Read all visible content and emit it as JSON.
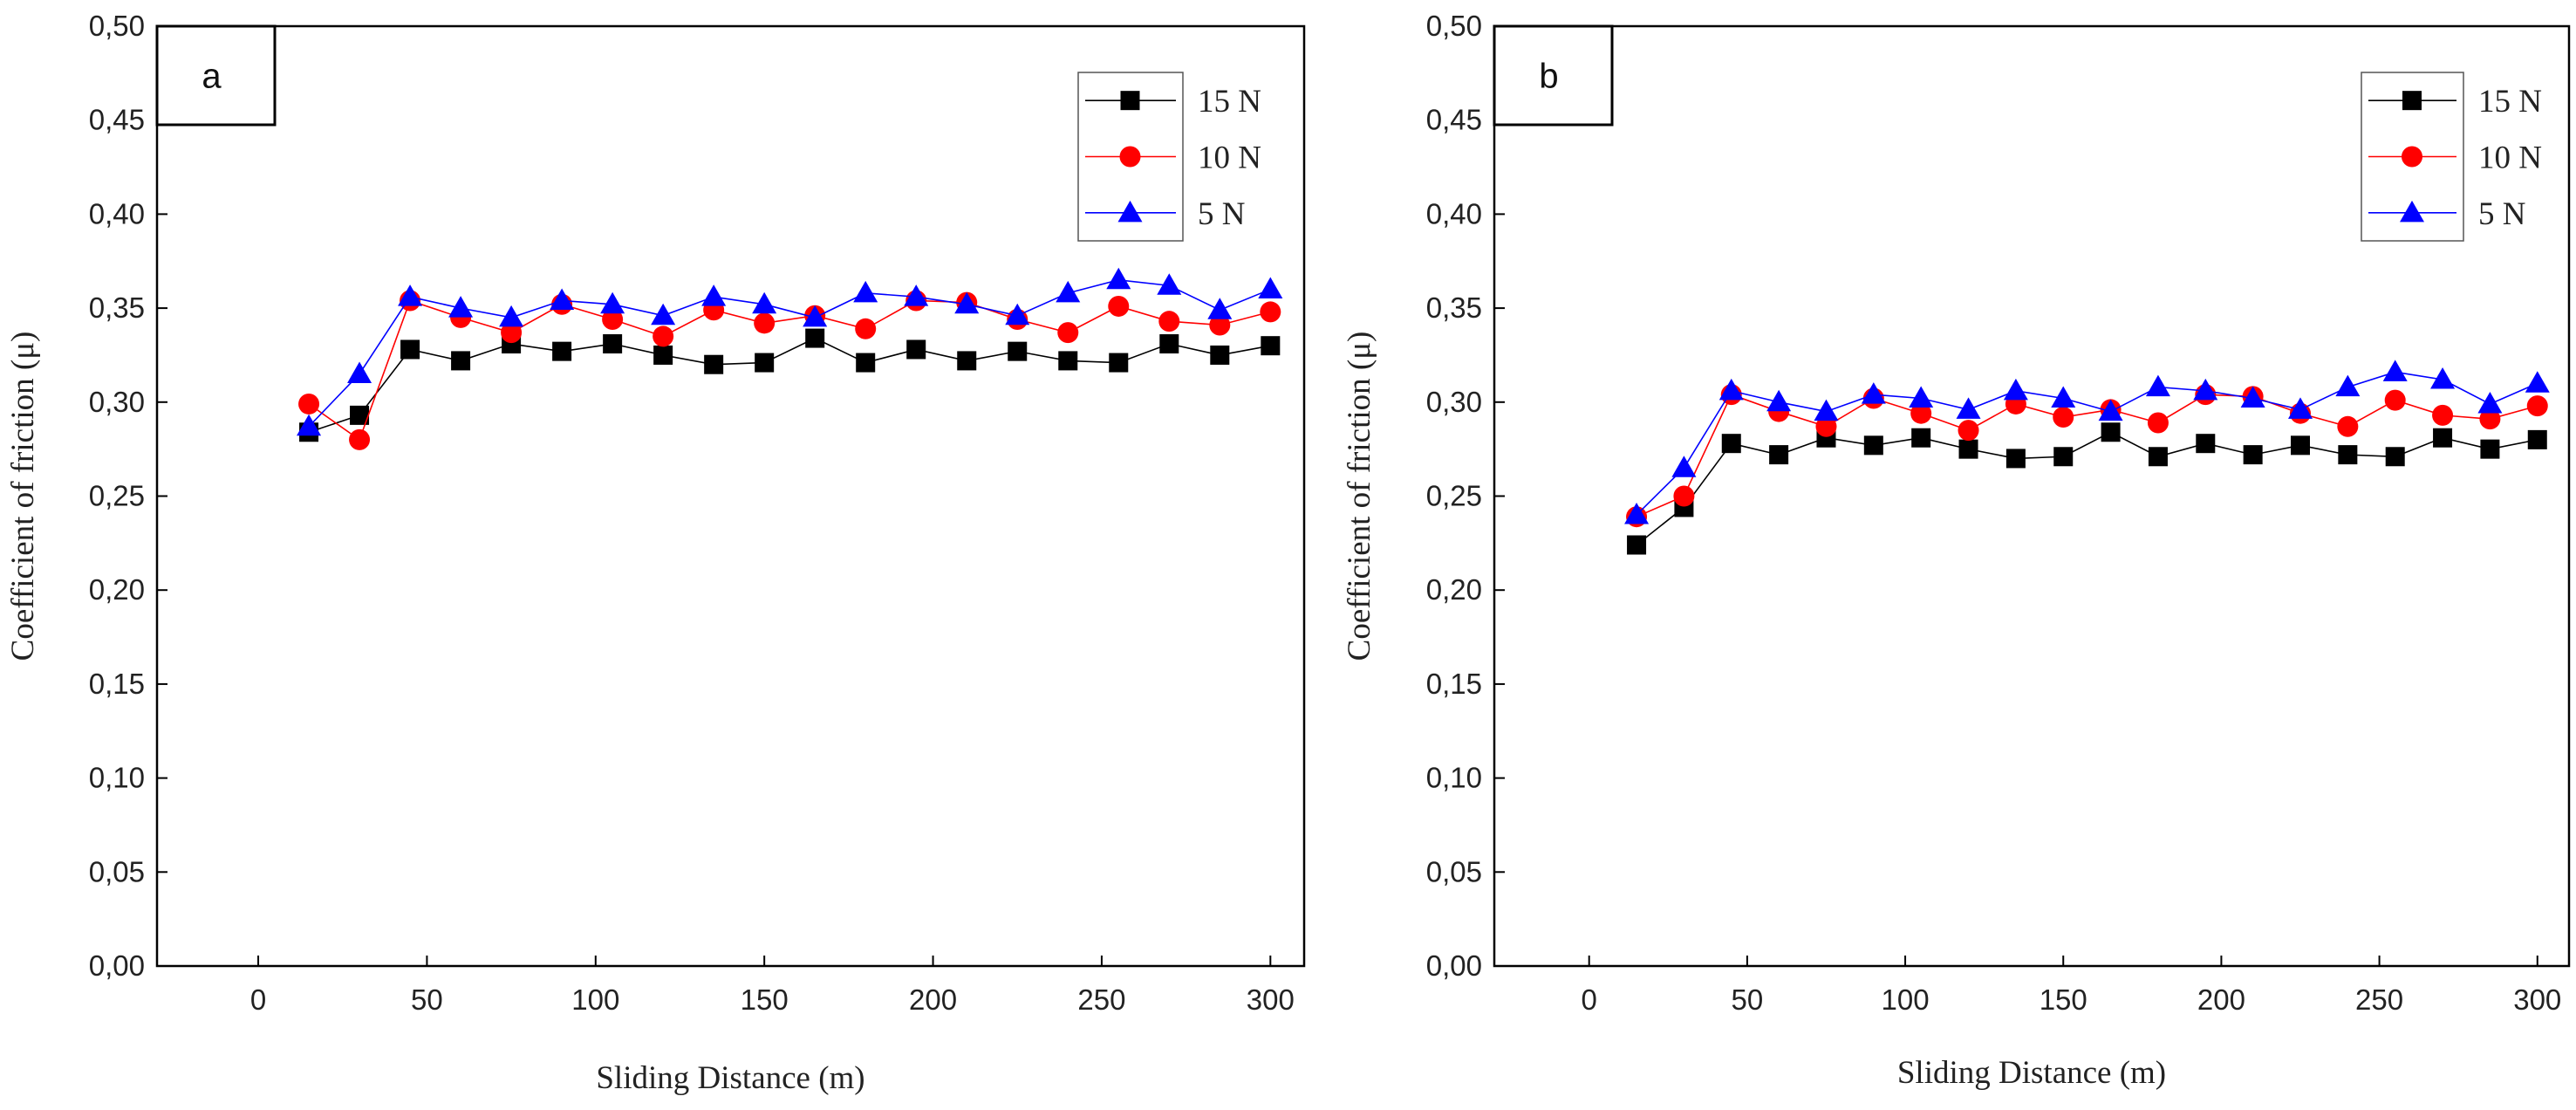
{
  "chart_data": [
    {
      "type": "line",
      "panel_label": "a",
      "xlabel": "Sliding Distance (m)",
      "ylabel": "Coefficient of friction (μ)",
      "xlim": [
        -30,
        310
      ],
      "ylim": [
        0.0,
        0.5
      ],
      "x_ticks": [
        "0",
        "50",
        "100",
        "150",
        "200",
        "250",
        "300"
      ],
      "y_ticks": [
        "0,00",
        "0,05",
        "0,10",
        "0,15",
        "0,20",
        "0,25",
        "0,30",
        "0,35",
        "0,40",
        "0,45",
        "0,50"
      ],
      "legend_position": "top-right",
      "x": [
        15,
        30,
        45,
        60,
        75,
        90,
        105,
        120,
        135,
        150,
        165,
        180,
        195,
        210,
        225,
        240,
        255,
        270,
        285,
        300
      ],
      "series": [
        {
          "name": "15 N",
          "color": "#000000",
          "marker": "square",
          "values": [
            0.284,
            0.293,
            0.328,
            0.322,
            0.331,
            0.327,
            0.331,
            0.325,
            0.32,
            0.321,
            0.334,
            0.321,
            0.328,
            0.322,
            0.327,
            0.322,
            0.321,
            0.331,
            0.325,
            0.33
          ]
        },
        {
          "name": "10 N",
          "color": "#ff0000",
          "marker": "circle",
          "values": [
            0.299,
            0.28,
            0.354,
            0.345,
            0.337,
            0.352,
            0.344,
            0.335,
            0.349,
            0.342,
            0.346,
            0.339,
            0.354,
            0.353,
            0.344,
            0.337,
            0.351,
            0.343,
            0.341,
            0.348
          ]
        },
        {
          "name": "5 N",
          "color": "#0000ff",
          "marker": "triangle",
          "values": [
            0.287,
            0.315,
            0.356,
            0.35,
            0.345,
            0.354,
            0.352,
            0.346,
            0.356,
            0.352,
            0.345,
            0.358,
            0.356,
            0.352,
            0.346,
            0.358,
            0.365,
            0.362,
            0.349,
            0.36
          ]
        }
      ]
    },
    {
      "type": "line",
      "panel_label": "b",
      "xlabel": "Sliding Distance (m)",
      "ylabel": "Coefficient of friction (μ)",
      "xlim": [
        -30,
        310
      ],
      "ylim": [
        0.0,
        0.5
      ],
      "x_ticks": [
        "0",
        "50",
        "100",
        "150",
        "200",
        "250",
        "300"
      ],
      "y_ticks": [
        "0,00",
        "0,05",
        "0,10",
        "0,15",
        "0,20",
        "0,25",
        "0,30",
        "0,35",
        "0,40",
        "0,45",
        "0,50"
      ],
      "legend_position": "top-right",
      "x": [
        15,
        30,
        45,
        60,
        75,
        90,
        105,
        120,
        135,
        150,
        165,
        180,
        195,
        210,
        225,
        240,
        255,
        270,
        285,
        300
      ],
      "series": [
        {
          "name": "15 N",
          "color": "#000000",
          "marker": "square",
          "values": [
            0.224,
            0.244,
            0.278,
            0.272,
            0.281,
            0.277,
            0.281,
            0.275,
            0.27,
            0.271,
            0.284,
            0.271,
            0.278,
            0.272,
            0.277,
            0.272,
            0.271,
            0.281,
            0.275,
            0.28
          ]
        },
        {
          "name": "10 N",
          "color": "#ff0000",
          "marker": "circle",
          "values": [
            0.239,
            0.25,
            0.304,
            0.295,
            0.287,
            0.302,
            0.294,
            0.285,
            0.299,
            0.292,
            0.296,
            0.289,
            0.304,
            0.303,
            0.294,
            0.287,
            0.301,
            0.293,
            0.291,
            0.298
          ]
        },
        {
          "name": "5 N",
          "color": "#0000ff",
          "marker": "triangle",
          "values": [
            0.24,
            0.265,
            0.306,
            0.3,
            0.295,
            0.304,
            0.302,
            0.296,
            0.306,
            0.302,
            0.295,
            0.308,
            0.306,
            0.302,
            0.296,
            0.308,
            0.316,
            0.312,
            0.299,
            0.31
          ]
        }
      ]
    }
  ]
}
